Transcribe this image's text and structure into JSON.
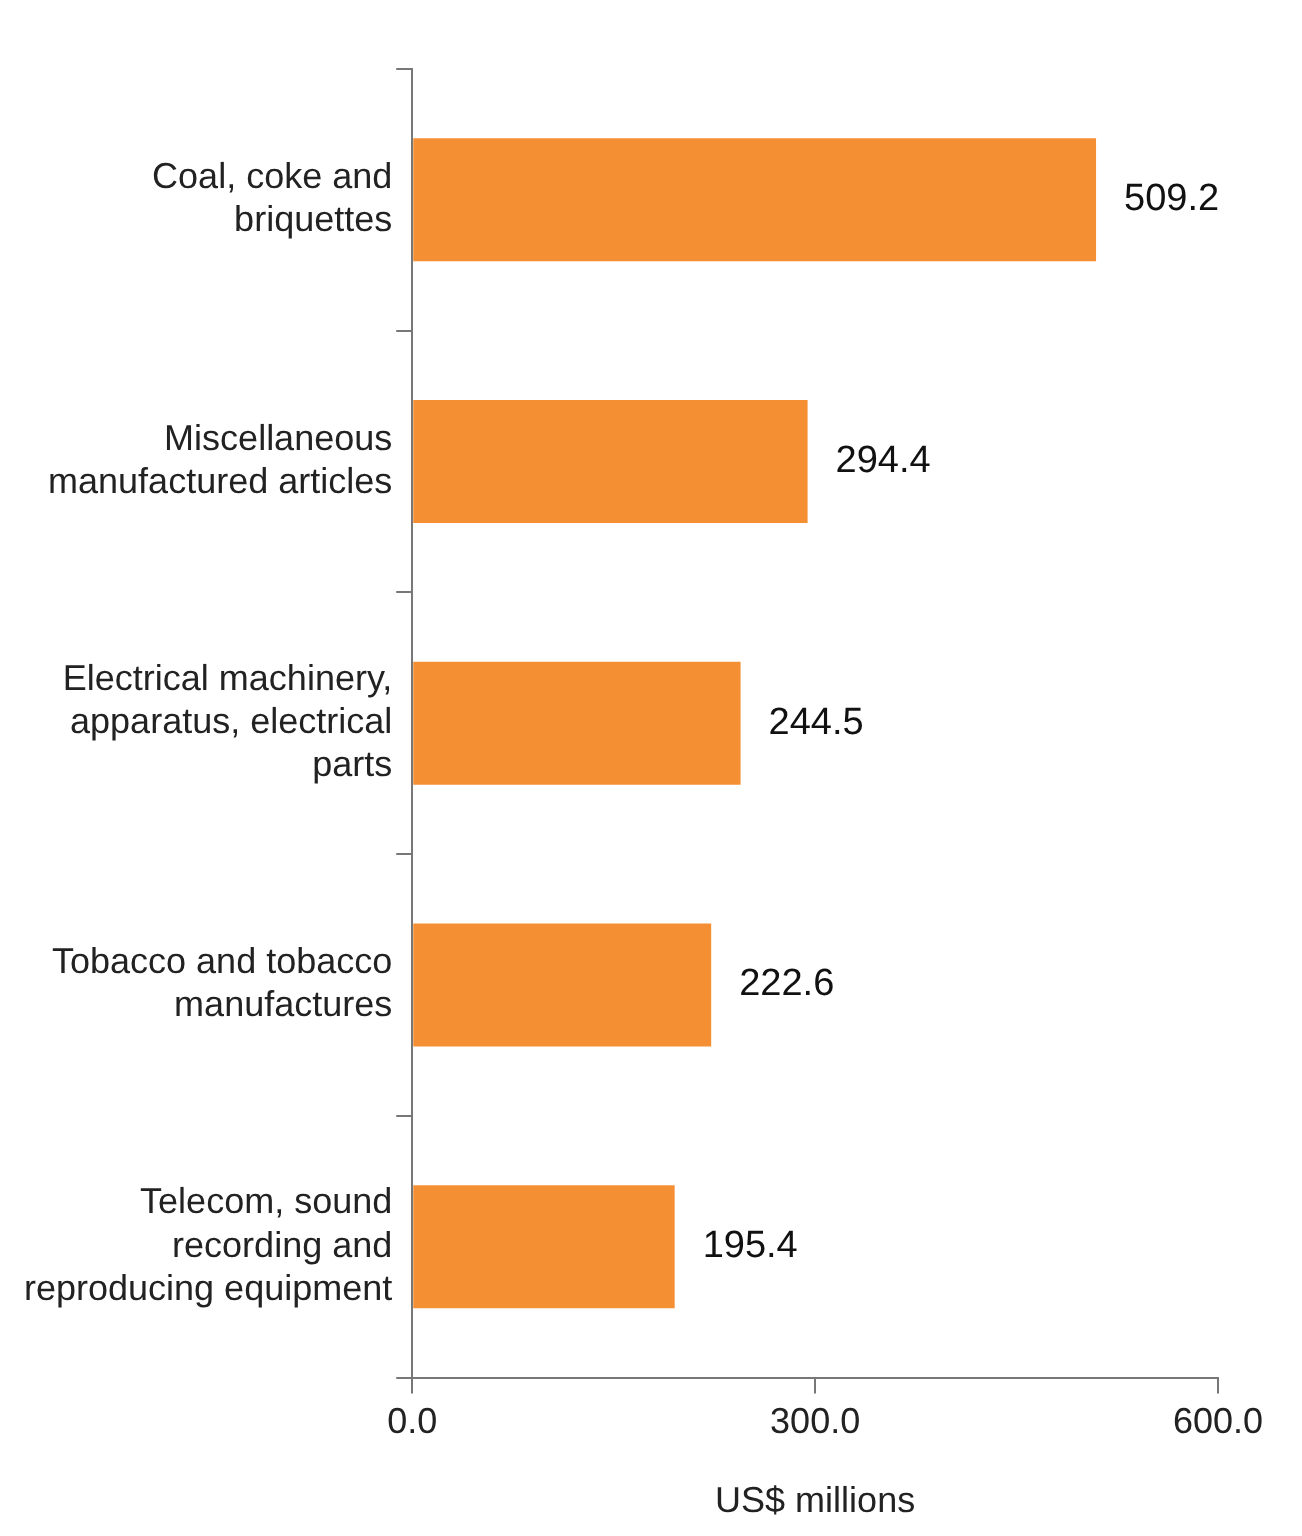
{
  "chart_data": {
    "type": "bar",
    "orientation": "horizontal",
    "categories": [
      "Coal, coke and\nbriquettes",
      "Miscellaneous\nmanufactured articles",
      "Electrical machinery,\napparatus, electrical\nparts",
      "Tobacco and tobacco\nmanufactures",
      "Telecom, sound\nrecording and\nreproducing equipment"
    ],
    "values": [
      509.2,
      294.4,
      244.5,
      222.6,
      195.4
    ],
    "color": "#f58f33",
    "xlim": [
      0,
      600
    ],
    "xticks": [
      {
        "value": 0,
        "label": "0.0"
      },
      {
        "value": 300,
        "label": "300.0"
      },
      {
        "value": 600,
        "label": "600.0"
      }
    ],
    "xlabel": "US$ millions",
    "data_labels": true,
    "grid": false,
    "legend": false
  }
}
